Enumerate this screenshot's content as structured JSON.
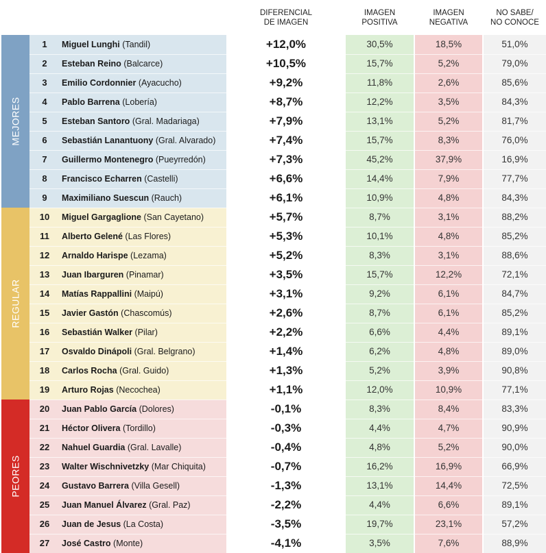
{
  "headers": {
    "diff": [
      "DIFERENCIAL",
      "DE IMAGEN"
    ],
    "pos": [
      "IMAGEN",
      "POSITIVA"
    ],
    "neg": [
      "IMAGEN",
      "NEGATIVA"
    ],
    "ns": [
      "NO SABE/",
      "NO CONOCE"
    ]
  },
  "groups": [
    {
      "label": "MEJORES",
      "band_color": "#7fa2c4",
      "row_color": "#d9e6ee",
      "start": 0,
      "count": 9
    },
    {
      "label": "REGULAR",
      "band_color": "#e8c367",
      "row_color": "#f8f1d2",
      "start": 9,
      "count": 10
    },
    {
      "label": "PEORES",
      "band_color": "#d42b26",
      "row_color": "#f6dcdc",
      "start": 19,
      "count": 8
    }
  ],
  "colors": {
    "positive_bg": "#dcefd5",
    "negative_bg": "#f5d2d2",
    "unknown_bg": "#f2f2f2"
  },
  "rows": [
    {
      "rank": "1",
      "name": "Miguel Lunghi",
      "place": "(Tandil)",
      "diff": "+12,0%",
      "pos": "30,5%",
      "neg": "18,5%",
      "ns": "51,0%"
    },
    {
      "rank": "2",
      "name": "Esteban Reino",
      "place": "(Balcarce)",
      "diff": "+10,5%",
      "pos": "15,7%",
      "neg": "5,2%",
      "ns": "79,0%"
    },
    {
      "rank": "3",
      "name": "Emilio Cordonnier",
      "place": "(Ayacucho)",
      "diff": "+9,2%",
      "pos": "11,8%",
      "neg": "2,6%",
      "ns": "85,6%"
    },
    {
      "rank": "4",
      "name": "Pablo Barrena",
      "place": "(Lobería)",
      "diff": "+8,7%",
      "pos": "12,2%",
      "neg": "3,5%",
      "ns": "84,3%"
    },
    {
      "rank": "5",
      "name": "Esteban Santoro",
      "place": "(Gral. Madariaga)",
      "diff": "+7,9%",
      "pos": "13,1%",
      "neg": "5,2%",
      "ns": "81,7%"
    },
    {
      "rank": "6",
      "name": "Sebastián Lanantuony",
      "place": "(Gral. Alvarado)",
      "diff": "+7,4%",
      "pos": "15,7%",
      "neg": "8,3%",
      "ns": "76,0%"
    },
    {
      "rank": "7",
      "name": "Guillermo Montenegro",
      "place": "(Pueyrredón)",
      "diff": "+7,3%",
      "pos": "45,2%",
      "neg": "37,9%",
      "ns": "16,9%"
    },
    {
      "rank": "8",
      "name": "Francisco Echarren",
      "place": "(Castelli)",
      "diff": "+6,6%",
      "pos": "14,4%",
      "neg": "7,9%",
      "ns": "77,7%"
    },
    {
      "rank": "9",
      "name": "Maximiliano Suescun",
      "place": "(Rauch)",
      "diff": "+6,1%",
      "pos": "10,9%",
      "neg": "4,8%",
      "ns": "84,3%"
    },
    {
      "rank": "10",
      "name": "Miguel Gargaglione",
      "place": "(San Cayetano)",
      "diff": "+5,7%",
      "pos": "8,7%",
      "neg": "3,1%",
      "ns": "88,2%"
    },
    {
      "rank": "11",
      "name": "Alberto Gelené",
      "place": "(Las Flores)",
      "diff": "+5,3%",
      "pos": "10,1%",
      "neg": "4,8%",
      "ns": "85,2%"
    },
    {
      "rank": "12",
      "name": "Arnaldo Harispe",
      "place": "(Lezama)",
      "diff": "+5,2%",
      "pos": "8,3%",
      "neg": "3,1%",
      "ns": "88,6%"
    },
    {
      "rank": "13",
      "name": "Juan Ibarguren",
      "place": "(Pinamar)",
      "diff": "+3,5%",
      "pos": "15,7%",
      "neg": "12,2%",
      "ns": "72,1%"
    },
    {
      "rank": "14",
      "name": "Matías Rappallini",
      "place": "(Maipú)",
      "diff": "+3,1%",
      "pos": "9,2%",
      "neg": "6,1%",
      "ns": "84,7%"
    },
    {
      "rank": "15",
      "name": "Javier Gastón",
      "place": "(Chascomús)",
      "diff": "+2,6%",
      "pos": "8,7%",
      "neg": "6,1%",
      "ns": "85,2%"
    },
    {
      "rank": "16",
      "name": "Sebastián Walker",
      "place": "(Pilar)",
      "diff": "+2,2%",
      "pos": "6,6%",
      "neg": "4,4%",
      "ns": "89,1%"
    },
    {
      "rank": "17",
      "name": "Osvaldo Dinápoli",
      "place": "(Gral. Belgrano)",
      "diff": "+1,4%",
      "pos": "6,2%",
      "neg": "4,8%",
      "ns": "89,0%"
    },
    {
      "rank": "18",
      "name": "Carlos Rocha",
      "place": "(Gral. Guido)",
      "diff": "+1,3%",
      "pos": "5,2%",
      "neg": "3,9%",
      "ns": "90,8%"
    },
    {
      "rank": "19",
      "name": "Arturo Rojas",
      "place": "(Necochea)",
      "diff": "+1,1%",
      "pos": "12,0%",
      "neg": "10,9%",
      "ns": "77,1%"
    },
    {
      "rank": "20",
      "name": "Juan Pablo García",
      "place": "(Dolores)",
      "diff": "-0,1%",
      "pos": "8,3%",
      "neg": "8,4%",
      "ns": "83,3%"
    },
    {
      "rank": "21",
      "name": "Héctor Olivera",
      "place": "(Tordillo)",
      "diff": "-0,3%",
      "pos": "4,4%",
      "neg": "4,7%",
      "ns": "90,9%"
    },
    {
      "rank": "22",
      "name": "Nahuel Guardia",
      "place": "(Gral. Lavalle)",
      "diff": "-0,4%",
      "pos": "4,8%",
      "neg": "5,2%",
      "ns": "90,0%"
    },
    {
      "rank": "23",
      "name": "Walter Wischnivetzky",
      "place": "(Mar Chiquita)",
      "diff": "-0,7%",
      "pos": "16,2%",
      "neg": "16,9%",
      "ns": "66,9%"
    },
    {
      "rank": "24",
      "name": "Gustavo Barrera",
      "place": "(Villa Gesell)",
      "diff": "-1,3%",
      "pos": "13,1%",
      "neg": "14,4%",
      "ns": "72,5%"
    },
    {
      "rank": "25",
      "name": "Juan Manuel Álvarez",
      "place": "(Gral. Paz)",
      "diff": "-2,2%",
      "pos": "4,4%",
      "neg": "6,6%",
      "ns": "89,1%"
    },
    {
      "rank": "26",
      "name": "Juan de Jesus",
      "place": "(La Costa)",
      "diff": "-3,5%",
      "pos": "19,7%",
      "neg": "23,1%",
      "ns": "57,2%"
    },
    {
      "rank": "27",
      "name": "José Castro",
      "place": "(Monte)",
      "diff": "-4,1%",
      "pos": "3,5%",
      "neg": "7,6%",
      "ns": "88,9%"
    }
  ]
}
